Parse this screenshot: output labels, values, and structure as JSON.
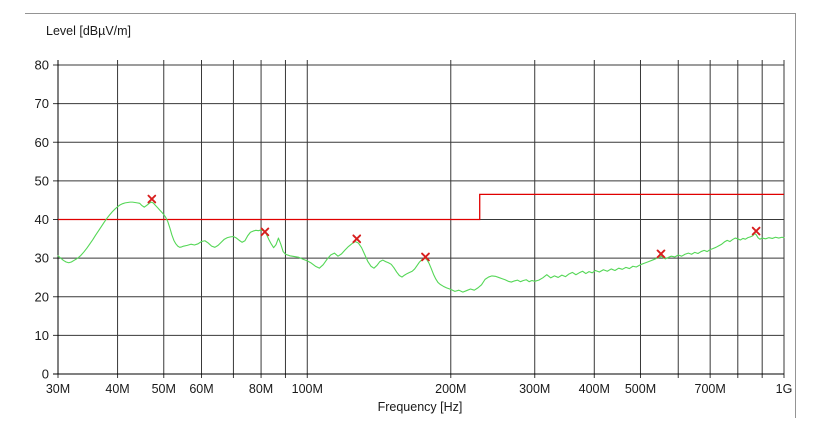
{
  "chart_data": {
    "type": "line",
    "title": "Level [dBµV/m]",
    "xlabel": "Frequency [Hz]",
    "x_scale": "log",
    "x_unit": "MHz",
    "x_range": [
      30,
      1000
    ],
    "y_range": [
      0,
      80
    ],
    "grid": true,
    "legend": "none",
    "x_gridlines": [
      30,
      40,
      50,
      60,
      70,
      80,
      90,
      100,
      200,
      300,
      400,
      500,
      600,
      700,
      800,
      900,
      1000
    ],
    "x_ticks": [
      {
        "v": 30,
        "label": "30M"
      },
      {
        "v": 40,
        "label": "40M"
      },
      {
        "v": 50,
        "label": "50M"
      },
      {
        "v": 60,
        "label": "60M"
      },
      {
        "v": 80,
        "label": "80M"
      },
      {
        "v": 100,
        "label": "100M"
      },
      {
        "v": 200,
        "label": "200M"
      },
      {
        "v": 300,
        "label": "300M"
      },
      {
        "v": 400,
        "label": "400M"
      },
      {
        "v": 500,
        "label": "500M"
      },
      {
        "v": 700,
        "label": "700M"
      },
      {
        "v": 1000,
        "label": "1G"
      }
    ],
    "y_ticks": [
      {
        "v": 0,
        "label": "0"
      },
      {
        "v": 10,
        "label": "10"
      },
      {
        "v": 20,
        "label": "20"
      },
      {
        "v": 30,
        "label": "30"
      },
      {
        "v": 40,
        "label": "40"
      },
      {
        "v": 50,
        "label": "50"
      },
      {
        "v": 60,
        "label": "60"
      },
      {
        "v": 70,
        "label": "70"
      },
      {
        "v": 80,
        "label": "80"
      }
    ],
    "series": [
      {
        "name": "measured-emission-trace",
        "color": "#55d757",
        "points": [
          [
            30,
            30.6
          ],
          [
            30.4,
            30.0
          ],
          [
            30.8,
            29.4
          ],
          [
            31.2,
            29.0
          ],
          [
            31.6,
            28.8
          ],
          [
            32,
            29.0
          ],
          [
            32.5,
            29.5
          ],
          [
            33,
            30.0
          ],
          [
            33.5,
            30.7
          ],
          [
            34,
            31.6
          ],
          [
            34.5,
            32.6
          ],
          [
            35,
            33.7
          ],
          [
            35.5,
            34.8
          ],
          [
            36,
            36.0
          ],
          [
            36.5,
            37.1
          ],
          [
            37,
            38.2
          ],
          [
            37.5,
            39.3
          ],
          [
            38,
            40.3
          ],
          [
            38.5,
            41.2
          ],
          [
            39,
            42.0
          ],
          [
            39.5,
            42.7
          ],
          [
            40,
            43.3
          ],
          [
            40.5,
            43.8
          ],
          [
            41,
            44.1
          ],
          [
            41.5,
            44.3
          ],
          [
            42,
            44.4
          ],
          [
            42.5,
            44.5
          ],
          [
            43,
            44.5
          ],
          [
            43.5,
            44.4
          ],
          [
            44,
            44.3
          ],
          [
            44.5,
            44.2
          ],
          [
            45,
            43.6
          ],
          [
            45.5,
            43.2
          ],
          [
            46,
            43.6
          ],
          [
            46.5,
            44.1
          ],
          [
            47,
            44.5
          ],
          [
            47.5,
            44.3
          ],
          [
            48,
            43.7
          ],
          [
            48.5,
            43.1
          ],
          [
            49,
            42.5
          ],
          [
            49.5,
            41.9
          ],
          [
            50,
            41.3
          ],
          [
            50.5,
            40.5
          ],
          [
            51,
            39.4
          ],
          [
            51.5,
            37.8
          ],
          [
            52,
            36.0
          ],
          [
            52.5,
            34.6
          ],
          [
            53,
            33.7
          ],
          [
            53.5,
            33.1
          ],
          [
            54,
            32.8
          ],
          [
            54.5,
            32.9
          ],
          [
            55,
            33.1
          ],
          [
            56,
            33.3
          ],
          [
            57,
            33.6
          ],
          [
            58,
            33.4
          ],
          [
            59,
            33.7
          ],
          [
            60,
            34.3
          ],
          [
            61,
            34.5
          ],
          [
            62,
            33.9
          ],
          [
            63,
            33.1
          ],
          [
            64,
            32.8
          ],
          [
            65,
            33.3
          ],
          [
            66,
            34.1
          ],
          [
            67,
            34.9
          ],
          [
            68,
            35.3
          ],
          [
            69,
            35.5
          ],
          [
            70,
            35.6
          ],
          [
            71,
            35.2
          ],
          [
            72,
            34.6
          ],
          [
            73,
            34.1
          ],
          [
            74,
            34.5
          ],
          [
            75,
            35.8
          ],
          [
            76,
            36.7
          ],
          [
            77,
            37.0
          ],
          [
            78,
            37.2
          ],
          [
            79,
            37.1
          ],
          [
            80,
            37.3
          ],
          [
            81,
            37.1
          ],
          [
            82,
            36.3
          ],
          [
            83,
            34.9
          ],
          [
            84,
            33.7
          ],
          [
            85,
            32.7
          ],
          [
            86,
            33.5
          ],
          [
            87,
            35.2
          ],
          [
            88,
            33.6
          ],
          [
            89,
            31.7
          ],
          [
            90,
            31.0
          ],
          [
            92,
            30.6
          ],
          [
            94,
            30.4
          ],
          [
            96,
            30.2
          ],
          [
            98,
            29.7
          ],
          [
            100,
            29.3
          ],
          [
            102,
            28.7
          ],
          [
            104,
            27.9
          ],
          [
            106,
            27.4
          ],
          [
            108,
            28.3
          ],
          [
            110,
            29.7
          ],
          [
            112,
            30.8
          ],
          [
            114,
            31.3
          ],
          [
            116,
            30.5
          ],
          [
            118,
            31.1
          ],
          [
            120,
            32.1
          ],
          [
            122,
            33.0
          ],
          [
            124,
            33.7
          ],
          [
            126,
            34.3
          ],
          [
            128,
            33.9
          ],
          [
            130,
            32.7
          ],
          [
            132,
            30.9
          ],
          [
            134,
            29.1
          ],
          [
            136,
            27.9
          ],
          [
            138,
            27.4
          ],
          [
            140,
            28.1
          ],
          [
            142,
            29.1
          ],
          [
            144,
            29.5
          ],
          [
            146,
            29.1
          ],
          [
            148,
            28.8
          ],
          [
            150,
            28.4
          ],
          [
            152,
            27.5
          ],
          [
            154,
            26.4
          ],
          [
            156,
            25.5
          ],
          [
            158,
            25.1
          ],
          [
            160,
            25.6
          ],
          [
            162,
            26.0
          ],
          [
            164,
            26.3
          ],
          [
            166,
            26.6
          ],
          [
            168,
            27.2
          ],
          [
            170,
            28.1
          ],
          [
            172,
            29.0
          ],
          [
            174,
            29.6
          ],
          [
            176,
            30.0
          ],
          [
            178,
            29.7
          ],
          [
            180,
            28.7
          ],
          [
            182,
            27.3
          ],
          [
            184,
            25.8
          ],
          [
            186,
            24.6
          ],
          [
            188,
            23.7
          ],
          [
            190,
            23.2
          ],
          [
            193,
            22.7
          ],
          [
            196,
            22.3
          ],
          [
            200,
            21.9
          ],
          [
            204,
            21.4
          ],
          [
            208,
            21.7
          ],
          [
            212,
            21.2
          ],
          [
            216,
            21.6
          ],
          [
            220,
            22.0
          ],
          [
            224,
            21.7
          ],
          [
            228,
            22.3
          ],
          [
            232,
            23.1
          ],
          [
            236,
            24.5
          ],
          [
            240,
            25.1
          ],
          [
            244,
            25.4
          ],
          [
            248,
            25.3
          ],
          [
            252,
            25.0
          ],
          [
            256,
            24.7
          ],
          [
            260,
            24.4
          ],
          [
            264,
            24.0
          ],
          [
            268,
            23.8
          ],
          [
            272,
            24.1
          ],
          [
            276,
            24.3
          ],
          [
            280,
            23.9
          ],
          [
            284,
            24.2
          ],
          [
            288,
            24.4
          ],
          [
            292,
            23.9
          ],
          [
            296,
            24.2
          ],
          [
            300,
            24.0
          ],
          [
            306,
            24.3
          ],
          [
            312,
            24.9
          ],
          [
            318,
            25.7
          ],
          [
            324,
            24.9
          ],
          [
            330,
            25.4
          ],
          [
            336,
            25.0
          ],
          [
            342,
            25.6
          ],
          [
            348,
            25.2
          ],
          [
            354,
            25.9
          ],
          [
            360,
            26.3
          ],
          [
            366,
            25.7
          ],
          [
            372,
            26.2
          ],
          [
            378,
            26.6
          ],
          [
            384,
            26.0
          ],
          [
            390,
            26.5
          ],
          [
            396,
            26.2
          ],
          [
            402,
            26.8
          ],
          [
            410,
            26.4
          ],
          [
            418,
            27.0
          ],
          [
            426,
            26.6
          ],
          [
            434,
            27.2
          ],
          [
            442,
            26.8
          ],
          [
            450,
            27.4
          ],
          [
            458,
            27.1
          ],
          [
            466,
            27.6
          ],
          [
            474,
            27.3
          ],
          [
            482,
            27.9
          ],
          [
            490,
            27.7
          ],
          [
            500,
            28.3
          ],
          [
            510,
            28.7
          ],
          [
            520,
            29.1
          ],
          [
            530,
            29.5
          ],
          [
            540,
            29.9
          ],
          [
            548,
            30.2
          ],
          [
            553,
            30.5
          ],
          [
            558,
            30.1
          ],
          [
            564,
            29.8
          ],
          [
            572,
            30.2
          ],
          [
            580,
            30.5
          ],
          [
            590,
            30.3
          ],
          [
            600,
            30.8
          ],
          [
            610,
            30.5
          ],
          [
            620,
            31.0
          ],
          [
            630,
            31.3
          ],
          [
            640,
            31.0
          ],
          [
            650,
            31.5
          ],
          [
            660,
            31.2
          ],
          [
            670,
            31.7
          ],
          [
            680,
            32.0
          ],
          [
            690,
            31.7
          ],
          [
            700,
            32.2
          ],
          [
            710,
            32.5
          ],
          [
            720,
            32.8
          ],
          [
            730,
            33.2
          ],
          [
            740,
            33.6
          ],
          [
            750,
            34.2
          ],
          [
            760,
            34.6
          ],
          [
            770,
            34.3
          ],
          [
            780,
            34.8
          ],
          [
            790,
            35.2
          ],
          [
            800,
            35.0
          ],
          [
            810,
            34.7
          ],
          [
            820,
            35.1
          ],
          [
            830,
            34.9
          ],
          [
            840,
            35.3
          ],
          [
            850,
            35.5
          ],
          [
            860,
            35.8
          ],
          [
            868,
            36.4
          ],
          [
            875,
            36.0
          ],
          [
            882,
            35.3
          ],
          [
            890,
            34.9
          ],
          [
            900,
            35.2
          ],
          [
            915,
            35.0
          ],
          [
            930,
            35.3
          ],
          [
            945,
            35.1
          ],
          [
            960,
            35.4
          ],
          [
            975,
            35.2
          ],
          [
            990,
            35.4
          ],
          [
            1000,
            35.3
          ]
        ]
      }
    ],
    "limit_line": {
      "name": "emission-limit-line",
      "color": "#e00000",
      "points": [
        [
          30,
          40
        ],
        [
          230,
          40
        ],
        [
          230,
          46.5
        ],
        [
          1000,
          46.5
        ]
      ]
    },
    "peak_markers": {
      "name": "peak-markers",
      "symbol": "x",
      "color": "#d81e1e",
      "points": [
        [
          47.2,
          45.3
        ],
        [
          81.5,
          36.8
        ],
        [
          127,
          35.0
        ],
        [
          177,
          30.3
        ],
        [
          552,
          31.1
        ],
        [
          874,
          37.0
        ]
      ]
    },
    "colors": {
      "grid": "#383838",
      "axis": "#000000",
      "frame_border": "#949494",
      "background": "#ffffff",
      "text": "#1a1a1a"
    }
  }
}
